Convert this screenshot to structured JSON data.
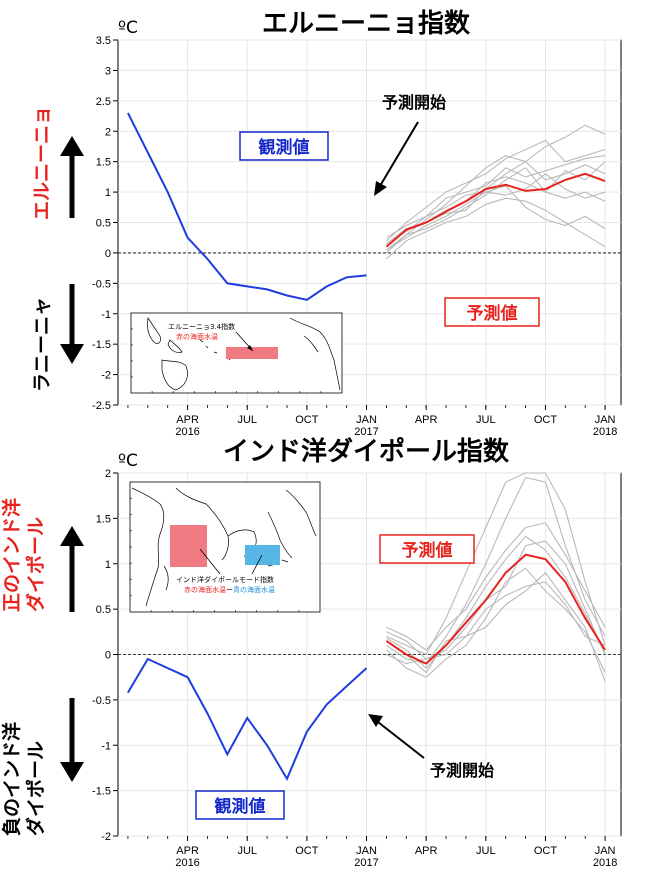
{
  "unit": "ºC",
  "start_label": "予測開始",
  "observed_label": "観測値",
  "forecast_label": "予測値",
  "colors": {
    "observed": "#1f3ce0",
    "ensemble_mean": "#e8231e",
    "members": "#b9b9b9",
    "warm_box": "#f07a82",
    "cold_box": "#56b7e6",
    "label_blue": "#1528c9",
    "label_red": "#e8231e"
  },
  "x_axis": {
    "ticks": [
      {
        "m": 3,
        "label": "APR",
        "year": "2016"
      },
      {
        "m": 6,
        "label": "JUL",
        "year": ""
      },
      {
        "m": 9,
        "label": "OCT",
        "year": ""
      },
      {
        "m": 12,
        "label": "JAN",
        "year": "2017"
      },
      {
        "m": 15,
        "label": "APR",
        "year": ""
      },
      {
        "m": 18,
        "label": "JUL",
        "year": ""
      },
      {
        "m": 21,
        "label": "OCT",
        "year": ""
      },
      {
        "m": 24,
        "label": "JAN",
        "year": "2018"
      }
    ]
  },
  "chart_data": [
    {
      "type": "line",
      "title": "エルニーニョ指数",
      "ylabel": "ºC",
      "ylim": [
        -2.5,
        3.5
      ],
      "yticks": [
        "-2.5",
        "-2",
        "-1.5",
        "-1",
        "-0.5",
        "0",
        "0.5",
        "1",
        "1.5",
        "2",
        "2.5",
        "3",
        "3.5"
      ],
      "side_upper": "エルニーニョ",
      "side_lower": "ラニーニャ",
      "inset": {
        "title": "エルニーニョ3.4指数",
        "line2": "赤の海面水温"
      },
      "observed": {
        "x": [
          0,
          1,
          2,
          3,
          4,
          5,
          6,
          7,
          8,
          9,
          10,
          11,
          12
        ],
        "y": [
          2.3,
          1.65,
          1.0,
          0.25,
          -0.1,
          -0.5,
          -0.55,
          -0.6,
          -0.7,
          -0.77,
          -0.55,
          -0.4,
          -0.37
        ]
      },
      "ensemble_mean": {
        "x": [
          13,
          14,
          15,
          16,
          17,
          18,
          19,
          20,
          21,
          22,
          23,
          24
        ],
        "y": [
          0.1,
          0.38,
          0.5,
          0.68,
          0.85,
          1.05,
          1.12,
          1.02,
          1.05,
          1.2,
          1.3,
          1.18
        ]
      },
      "members": [
        {
          "x": [
            13,
            14,
            15,
            16,
            17,
            18,
            19,
            20,
            21,
            22,
            23,
            24
          ],
          "y": [
            0.0,
            0.3,
            0.55,
            0.8,
            1.1,
            1.4,
            1.6,
            1.5,
            1.75,
            1.9,
            2.1,
            1.95
          ]
        },
        {
          "x": [
            13,
            14,
            15,
            16,
            17,
            18,
            19,
            20,
            21,
            22,
            23,
            24
          ],
          "y": [
            0.2,
            0.5,
            0.75,
            1.0,
            1.15,
            1.3,
            1.55,
            1.7,
            1.85,
            1.5,
            1.6,
            1.7
          ]
        },
        {
          "x": [
            13,
            14,
            15,
            16,
            17,
            18,
            19,
            20,
            21,
            22,
            23,
            24
          ],
          "y": [
            0.15,
            0.35,
            0.6,
            0.9,
            1.0,
            1.1,
            1.4,
            1.25,
            1.35,
            1.45,
            1.55,
            1.6
          ]
        },
        {
          "x": [
            13,
            14,
            15,
            16,
            17,
            18,
            19,
            20,
            21,
            22,
            23,
            24
          ],
          "y": [
            0.05,
            0.3,
            0.4,
            0.55,
            0.75,
            0.95,
            1.2,
            1.4,
            1.0,
            0.9,
            1.0,
            0.85
          ]
        },
        {
          "x": [
            13,
            14,
            15,
            16,
            17,
            18,
            19,
            20,
            21,
            22,
            23,
            24
          ],
          "y": [
            -0.1,
            0.2,
            0.35,
            0.5,
            0.6,
            0.8,
            0.9,
            0.85,
            0.7,
            0.5,
            0.3,
            0.1
          ]
        },
        {
          "x": [
            13,
            14,
            15,
            16,
            17,
            18,
            19,
            20,
            21,
            22,
            23,
            24
          ],
          "y": [
            0.25,
            0.45,
            0.6,
            0.75,
            0.95,
            1.0,
            1.1,
            0.75,
            0.55,
            0.45,
            0.6,
            0.4
          ]
        },
        {
          "x": [
            13,
            14,
            15,
            16,
            17,
            18,
            19,
            20,
            21,
            22,
            23,
            24
          ],
          "y": [
            0.1,
            0.4,
            0.5,
            0.65,
            0.7,
            1.05,
            1.3,
            1.5,
            1.2,
            1.3,
            1.45,
            1.3
          ]
        },
        {
          "x": [
            13,
            14,
            15,
            16,
            17,
            18,
            19,
            20,
            21,
            22,
            23,
            24
          ],
          "y": [
            0.05,
            0.25,
            0.45,
            0.6,
            0.8,
            1.0,
            0.95,
            1.05,
            1.3,
            1.05,
            0.9,
            1.0
          ]
        },
        {
          "x": [
            13,
            14,
            15,
            16,
            17,
            18,
            19,
            20,
            21,
            22,
            23,
            24
          ],
          "y": [
            0.15,
            0.4,
            0.5,
            0.7,
            0.85,
            1.15,
            1.25,
            1.15,
            1.0,
            1.35,
            1.2,
            1.5
          ]
        }
      ]
    },
    {
      "type": "line",
      "title": "インド洋ダイポール指数",
      "ylabel": "ºC",
      "ylim": [
        -2,
        2
      ],
      "yticks": [
        "-2",
        "-1.5",
        "-1",
        "-0.5",
        "0",
        "0.5",
        "1",
        "1.5",
        "2"
      ],
      "side_upper": "正のインド洋\nダイポール",
      "side_lower": "負のインド洋\nダイポール",
      "inset": {
        "title": "インド洋ダイポールモード指数",
        "line2_red": "赤の海面水温",
        "line2_sep": "ー",
        "line2_blue": "青の海面水温"
      },
      "observed": {
        "x": [
          0,
          1,
          2,
          3,
          4,
          5,
          6,
          7,
          8,
          9,
          10,
          11,
          12
        ],
        "y": [
          -0.42,
          -0.05,
          -0.15,
          -0.25,
          -0.65,
          -1.1,
          -0.7,
          -1.0,
          -1.37,
          -0.85,
          -0.55,
          -0.35,
          -0.15
        ]
      },
      "ensemble_mean": {
        "x": [
          13,
          14,
          15,
          16,
          17,
          18,
          19,
          20,
          21,
          22,
          23,
          24
        ],
        "y": [
          0.15,
          0.0,
          -0.1,
          0.1,
          0.35,
          0.6,
          0.9,
          1.1,
          1.05,
          0.8,
          0.4,
          0.05
        ]
      },
      "members": [
        {
          "x": [
            13,
            14,
            15,
            16,
            17,
            18,
            19,
            20,
            21,
            22,
            23,
            24
          ],
          "y": [
            0.2,
            0.1,
            0.0,
            0.4,
            0.9,
            1.4,
            1.9,
            2.0,
            2.0,
            1.6,
            0.8,
            0.1
          ]
        },
        {
          "x": [
            13,
            14,
            15,
            16,
            17,
            18,
            19,
            20,
            21,
            22,
            23,
            24
          ],
          "y": [
            0.1,
            -0.05,
            -0.1,
            0.2,
            0.55,
            1.0,
            1.5,
            1.95,
            1.9,
            1.2,
            0.6,
            0.2
          ]
        },
        {
          "x": [
            13,
            14,
            15,
            16,
            17,
            18,
            19,
            20,
            21,
            22,
            23,
            24
          ],
          "y": [
            0.25,
            0.15,
            -0.05,
            0.05,
            0.3,
            0.6,
            0.75,
            1.2,
            1.25,
            1.0,
            0.5,
            0.0
          ]
        },
        {
          "x": [
            13,
            14,
            15,
            16,
            17,
            18,
            19,
            20,
            21,
            22,
            23,
            24
          ],
          "y": [
            0.05,
            -0.15,
            -0.25,
            -0.05,
            0.1,
            0.4,
            0.8,
            0.95,
            0.7,
            0.5,
            0.25,
            -0.2
          ]
        },
        {
          "x": [
            13,
            14,
            15,
            16,
            17,
            18,
            19,
            20,
            21,
            22,
            23,
            24
          ],
          "y": [
            0.15,
            0.0,
            -0.2,
            0.15,
            0.2,
            0.3,
            0.55,
            0.7,
            0.9,
            0.6,
            0.3,
            -0.3
          ]
        },
        {
          "x": [
            13,
            14,
            15,
            16,
            17,
            18,
            19,
            20,
            21,
            22,
            23,
            24
          ],
          "y": [
            0.3,
            0.2,
            0.05,
            0.3,
            0.5,
            0.85,
            1.15,
            1.4,
            1.45,
            1.1,
            0.7,
            0.3
          ]
        },
        {
          "x": [
            13,
            14,
            15,
            16,
            17,
            18,
            19,
            20,
            21,
            22,
            23,
            24
          ],
          "y": [
            0.0,
            -0.1,
            -0.05,
            0.0,
            0.2,
            0.5,
            0.65,
            0.75,
            0.8,
            0.55,
            0.2,
            0.1
          ]
        },
        {
          "x": [
            13,
            14,
            15,
            16,
            17,
            18,
            19,
            20,
            21,
            22,
            23,
            24
          ],
          "y": [
            0.18,
            0.05,
            -0.15,
            0.1,
            0.4,
            0.75,
            1.05,
            1.3,
            1.15,
            0.85,
            0.45,
            0.0
          ]
        }
      ]
    }
  ]
}
